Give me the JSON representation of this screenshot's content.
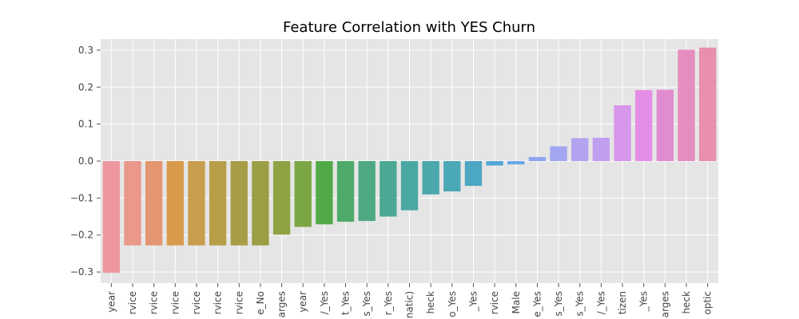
{
  "chart_data": {
    "type": "bar",
    "title": "Feature Correlation with YES Churn",
    "xlabel": "",
    "ylabel": "",
    "ylim": [
      -0.33,
      0.33
    ],
    "yticks": [
      -0.3,
      -0.2,
      -0.1,
      0.0,
      0.1,
      0.2,
      0.3
    ],
    "ytick_labels": [
      "−0.3",
      "−0.2",
      "−0.1",
      "0.0",
      "0.1",
      "0.2",
      "0.3"
    ],
    "grid": true,
    "categories": [
      "year",
      "rvice",
      "rvice",
      "rvice",
      "rvice",
      "rvice",
      "rvice",
      "e_No",
      "arges",
      "year",
      "/_Yes",
      "t_Yes",
      "s_Yes",
      "r_Yes",
      "natic)",
      "heck",
      "o_Yes",
      "_Yes",
      "rvice",
      "Male",
      "e_Yes",
      "s_Yes",
      "s_Yes",
      "/_Yes",
      "tizen",
      "_Yes",
      "arges",
      "heck",
      "optic"
    ],
    "values": [
      -0.302,
      -0.228,
      -0.228,
      -0.228,
      -0.228,
      -0.228,
      -0.228,
      -0.228,
      -0.199,
      -0.178,
      -0.171,
      -0.164,
      -0.162,
      -0.15,
      -0.133,
      -0.09,
      -0.082,
      -0.067,
      -0.012,
      -0.009,
      0.011,
      0.04,
      0.062,
      0.063,
      0.151,
      0.192,
      0.193,
      0.301,
      0.307
    ],
    "colors": [
      "#ee97a0",
      "#e9988a",
      "#e3966f",
      "#d99a4c",
      "#c89e4e",
      "#b79e49",
      "#a89d47",
      "#9b9e45",
      "#8fa244",
      "#7ba644",
      "#51aa47",
      "#4eaa6a",
      "#4ea983",
      "#4ca894",
      "#4aa8a2",
      "#4aa7ac",
      "#4ba8b6",
      "#4ca7c2",
      "#54a7d4",
      "#6aa6e6",
      "#8ba6ee",
      "#a2a6f0",
      "#b3a2ef",
      "#c19ff0",
      "#d697ea",
      "#e58de6",
      "#e18cd1",
      "#e58dbe",
      "#e88fab"
    ]
  }
}
